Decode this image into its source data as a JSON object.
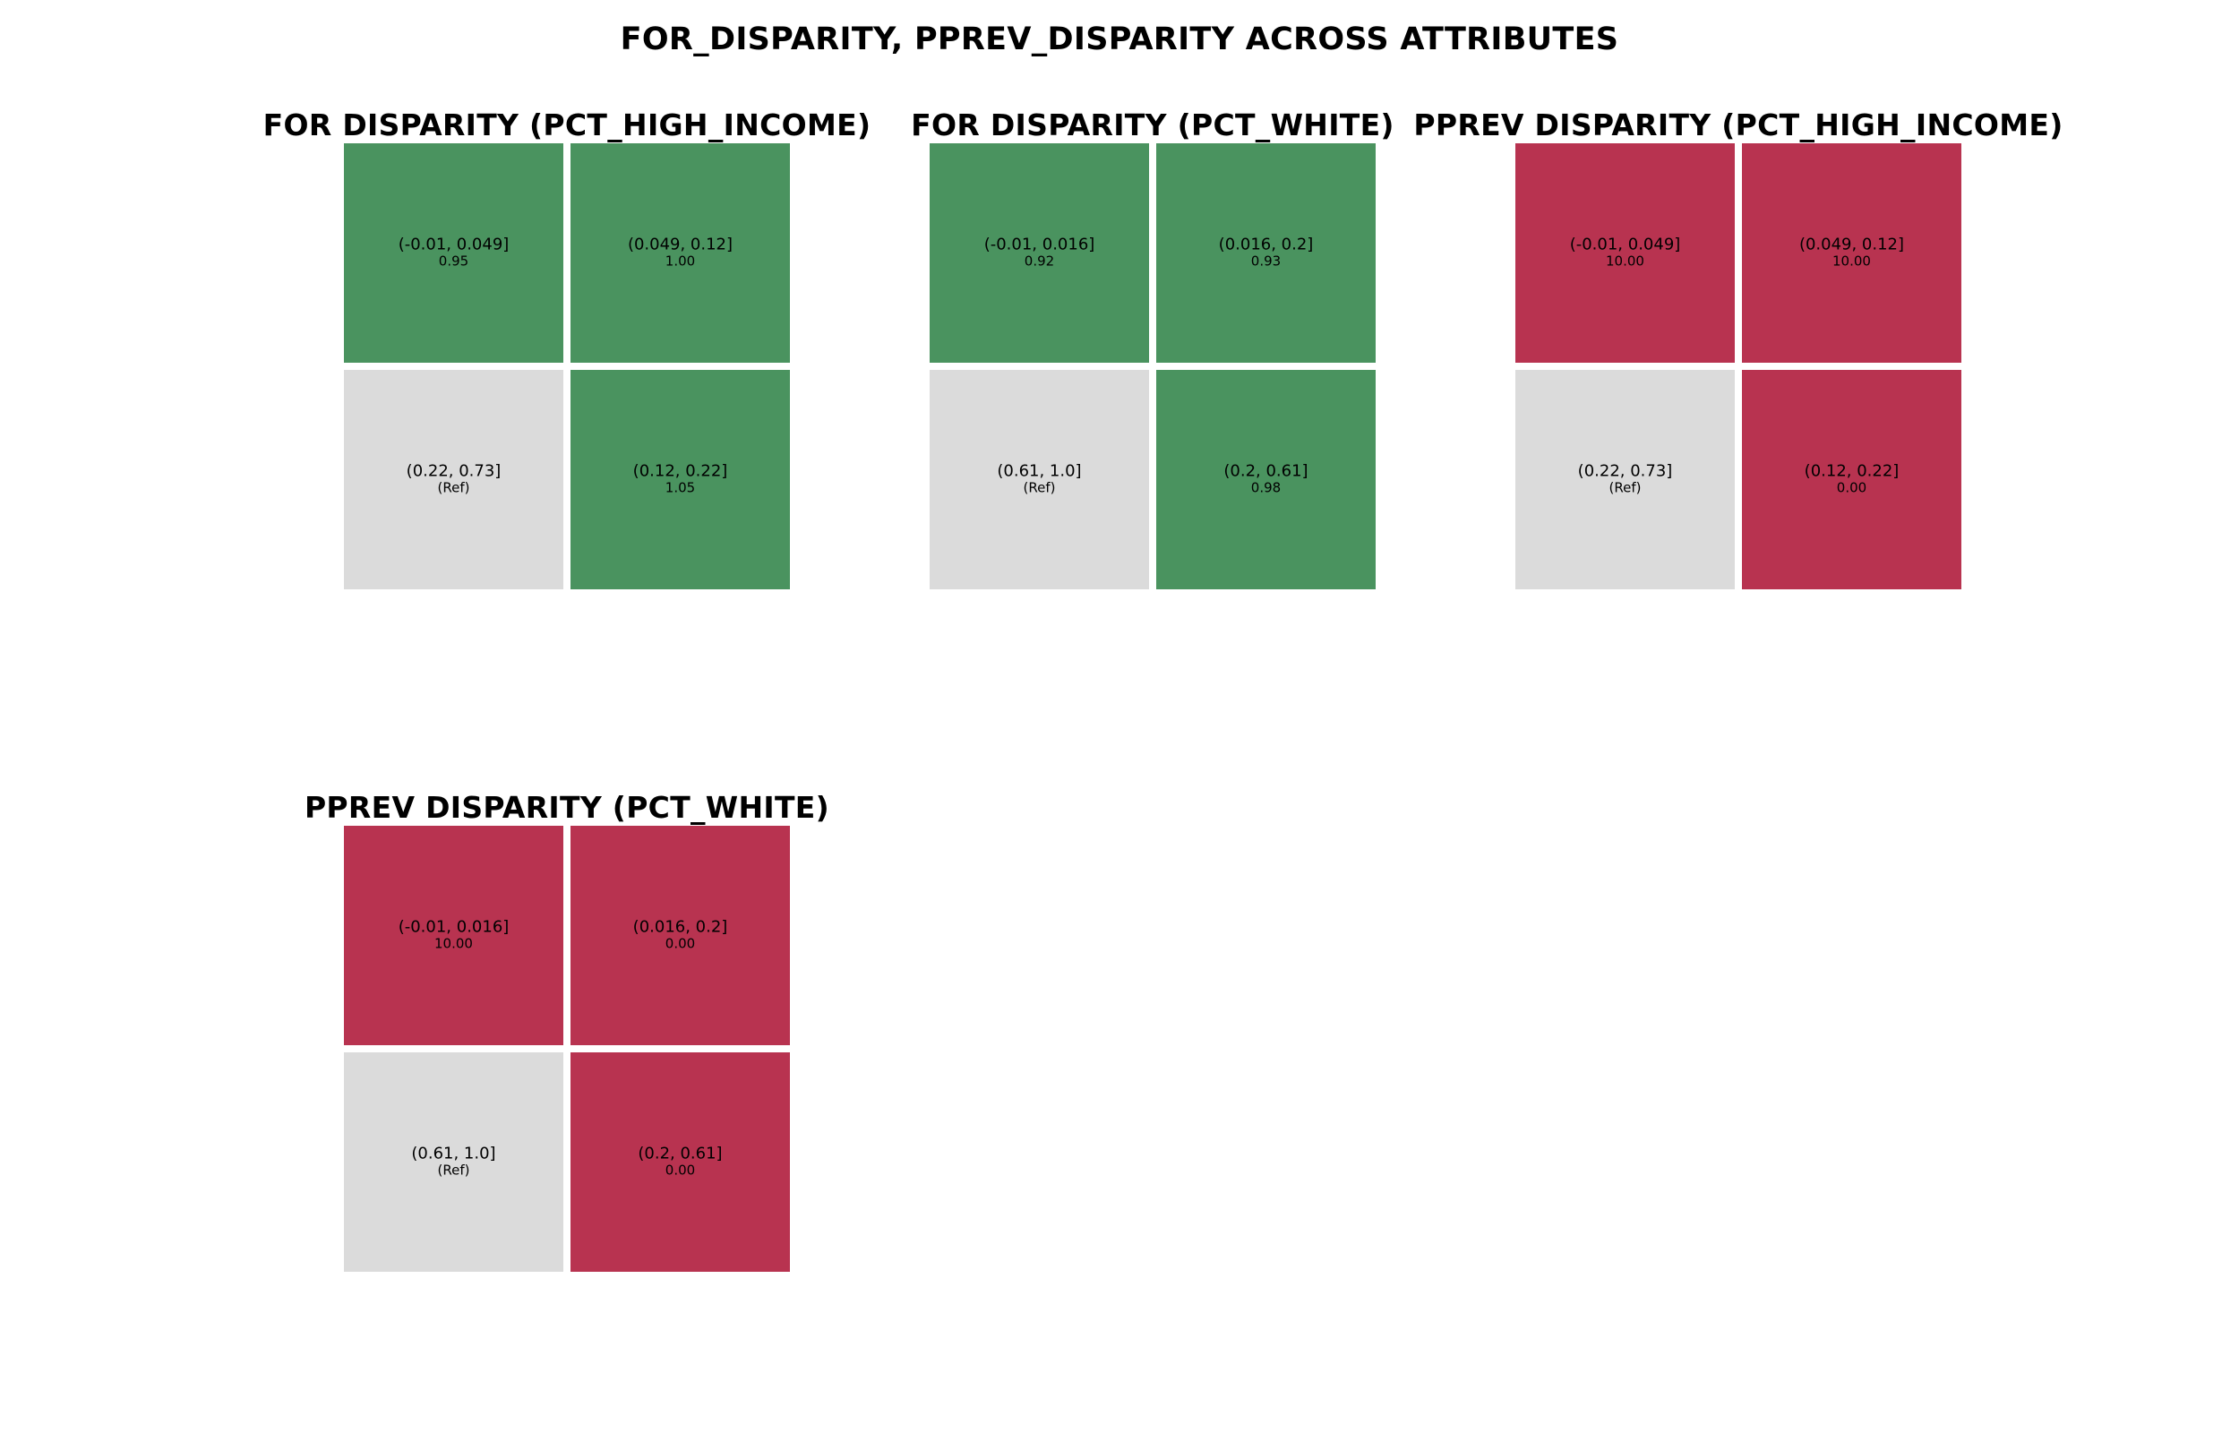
{
  "title": "FOR_DISPARITY, PPREV_DISPARITY ACROSS ATTRIBUTES",
  "colors": {
    "favorable": "#4a935f",
    "unfavorable": "#b83350",
    "reference": "#dbdbdb",
    "background": "#ffffff",
    "text": "#000000"
  },
  "chart_data": [
    {
      "type": "heatmap",
      "title": "FOR DISPARITY (PCT_HIGH_INCOME)",
      "metric": "FOR DISPARITY",
      "attribute": "PCT_HIGH_INCOME",
      "cells": [
        {
          "label": "(-0.01, 0.049]",
          "value_label": "0.95",
          "value": 0.95,
          "status": "favorable"
        },
        {
          "label": "(0.049, 0.12]",
          "value_label": "1.00",
          "value": 1.0,
          "status": "favorable"
        },
        {
          "label": "(0.22, 0.73]",
          "value_label": "(Ref)",
          "value": null,
          "status": "reference"
        },
        {
          "label": "(0.12, 0.22]",
          "value_label": "1.05",
          "value": 1.05,
          "status": "favorable"
        }
      ]
    },
    {
      "type": "heatmap",
      "title": "FOR DISPARITY (PCT_WHITE)",
      "metric": "FOR DISPARITY",
      "attribute": "PCT_WHITE",
      "cells": [
        {
          "label": "(-0.01, 0.016]",
          "value_label": "0.92",
          "value": 0.92,
          "status": "favorable"
        },
        {
          "label": "(0.016, 0.2]",
          "value_label": "0.93",
          "value": 0.93,
          "status": "favorable"
        },
        {
          "label": "(0.61, 1.0]",
          "value_label": "(Ref)",
          "value": null,
          "status": "reference"
        },
        {
          "label": "(0.2, 0.61]",
          "value_label": "0.98",
          "value": 0.98,
          "status": "favorable"
        }
      ]
    },
    {
      "type": "heatmap",
      "title": "PPREV DISPARITY (PCT_HIGH_INCOME)",
      "metric": "PPREV DISPARITY",
      "attribute": "PCT_HIGH_INCOME",
      "cells": [
        {
          "label": "(-0.01, 0.049]",
          "value_label": "10.00",
          "value": 10.0,
          "status": "unfavorable"
        },
        {
          "label": "(0.049, 0.12]",
          "value_label": "10.00",
          "value": 10.0,
          "status": "unfavorable"
        },
        {
          "label": "(0.22, 0.73]",
          "value_label": "(Ref)",
          "value": null,
          "status": "reference"
        },
        {
          "label": "(0.12, 0.22]",
          "value_label": "0.00",
          "value": 0.0,
          "status": "unfavorable"
        }
      ]
    },
    {
      "type": "heatmap",
      "title": "PPREV DISPARITY (PCT_WHITE)",
      "metric": "PPREV DISPARITY",
      "attribute": "PCT_WHITE",
      "cells": [
        {
          "label": "(-0.01, 0.016]",
          "value_label": "10.00",
          "value": 10.0,
          "status": "unfavorable"
        },
        {
          "label": "(0.016, 0.2]",
          "value_label": "0.00",
          "value": 0.0,
          "status": "unfavorable"
        },
        {
          "label": "(0.61, 1.0]",
          "value_label": "(Ref)",
          "value": null,
          "status": "reference"
        },
        {
          "label": "(0.2, 0.61]",
          "value_label": "0.00",
          "value": 0.0,
          "status": "unfavorable"
        }
      ]
    }
  ]
}
